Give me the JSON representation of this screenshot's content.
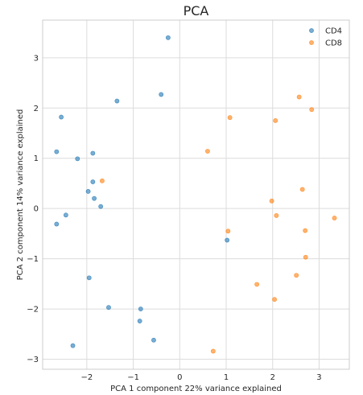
{
  "chart_data": {
    "type": "scatter",
    "title": "PCA",
    "xlabel": "PCA 1 component 22% variance explained",
    "ylabel": "PCA 2 component 14% variance explained",
    "xlim": [
      -2.95,
      3.65
    ],
    "ylim": [
      -3.2,
      3.75
    ],
    "xticks": [
      -2,
      -1,
      0,
      1,
      2,
      3
    ],
    "yticks": [
      -3,
      -2,
      -1,
      0,
      1,
      2,
      3
    ],
    "grid": true,
    "legend_position": "top-right",
    "series": [
      {
        "name": "CD4",
        "color": "#1f77b4",
        "points": [
          {
            "x": -0.25,
            "y": 3.4
          },
          {
            "x": -0.4,
            "y": 2.27
          },
          {
            "x": -1.35,
            "y": 2.14
          },
          {
            "x": -2.55,
            "y": 1.82
          },
          {
            "x": -2.65,
            "y": 1.13
          },
          {
            "x": -1.87,
            "y": 1.1
          },
          {
            "x": -2.2,
            "y": 0.99
          },
          {
            "x": -1.87,
            "y": 0.53
          },
          {
            "x": -1.97,
            "y": 0.34
          },
          {
            "x": -1.84,
            "y": 0.2
          },
          {
            "x": -1.7,
            "y": 0.04
          },
          {
            "x": -2.45,
            "y": -0.13
          },
          {
            "x": -2.65,
            "y": -0.31
          },
          {
            "x": 1.02,
            "y": -0.63
          },
          {
            "x": -1.95,
            "y": -1.38
          },
          {
            "x": -1.53,
            "y": -1.97
          },
          {
            "x": -0.84,
            "y": -2.0
          },
          {
            "x": -0.86,
            "y": -2.24
          },
          {
            "x": -0.56,
            "y": -2.62
          },
          {
            "x": -2.3,
            "y": -2.73
          }
        ]
      },
      {
        "name": "CD8",
        "color": "#ff7f0e",
        "points": [
          {
            "x": 2.57,
            "y": 2.22
          },
          {
            "x": 2.84,
            "y": 1.97
          },
          {
            "x": 1.08,
            "y": 1.81
          },
          {
            "x": 2.06,
            "y": 1.75
          },
          {
            "x": 0.6,
            "y": 1.14
          },
          {
            "x": -1.67,
            "y": 0.55
          },
          {
            "x": 2.64,
            "y": 0.38
          },
          {
            "x": 1.98,
            "y": 0.15
          },
          {
            "x": 2.08,
            "y": -0.14
          },
          {
            "x": 3.33,
            "y": -0.19
          },
          {
            "x": 1.04,
            "y": -0.45
          },
          {
            "x": 2.7,
            "y": -0.44
          },
          {
            "x": 2.71,
            "y": -0.97
          },
          {
            "x": 2.51,
            "y": -1.33
          },
          {
            "x": 1.66,
            "y": -1.51
          },
          {
            "x": 2.04,
            "y": -1.81
          },
          {
            "x": 0.72,
            "y": -2.84
          }
        ]
      }
    ]
  }
}
